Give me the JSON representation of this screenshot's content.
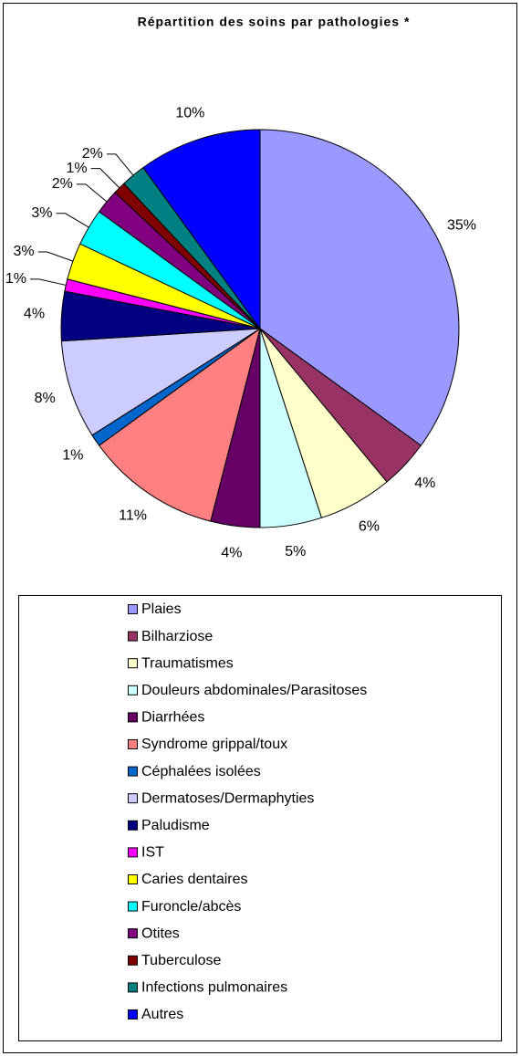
{
  "chart_data": {
    "type": "pie",
    "title": "Répartition des soins par pathologies *",
    "categories": [
      "Plaies",
      "Bilharziose",
      "Traumatismes",
      "Douleurs abdominales/Parasitoses",
      "Diarrhées",
      "Syndrome grippal/toux",
      "Céphalées isolées",
      "Dermatoses/Dermaphyties",
      "Paludisme",
      "IST",
      "Caries dentaires",
      "Furoncle/abcès",
      "Otites",
      "Tuberculose",
      "Infections pulmonaires",
      "Autres"
    ],
    "values": [
      35,
      4,
      6,
      5,
      4,
      11,
      1,
      8,
      4,
      1,
      3,
      3,
      2,
      1,
      2,
      10
    ],
    "value_labels": [
      "35%",
      "4%",
      "6%",
      "5%",
      "4%",
      "11%",
      "1%",
      "8%",
      "4%",
      "1%",
      "3%",
      "3%",
      "2%",
      "1%",
      "2%",
      "10%"
    ],
    "colors": [
      "#9999ff",
      "#993366",
      "#ffffcc",
      "#ccffff",
      "#660066",
      "#ff8080",
      "#0066cc",
      "#ccccff",
      "#000080",
      "#ff00ff",
      "#ffff00",
      "#00ffff",
      "#800080",
      "#800000",
      "#008080",
      "#0000ff"
    ],
    "legend": "bottom"
  }
}
